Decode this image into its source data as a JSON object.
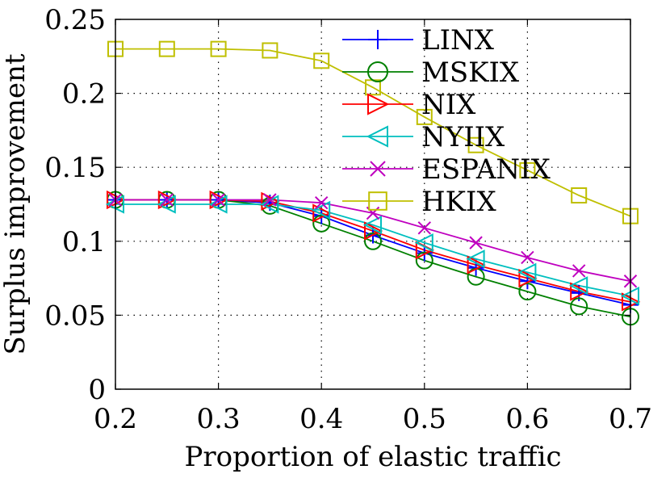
{
  "chart_data": {
    "type": "line",
    "title": "",
    "xlabel": "Proportion of elastic traffic",
    "ylabel": "Surplus improvement",
    "x": [
      0.2,
      0.25,
      0.3,
      0.35,
      0.4,
      0.45,
      0.5,
      0.55,
      0.6,
      0.65,
      0.7
    ],
    "xlim": [
      0.2,
      0.7
    ],
    "ylim": [
      0,
      0.25
    ],
    "xticks": [
      "0.2",
      "0.3",
      "0.4",
      "0.5",
      "0.6",
      "0.7"
    ],
    "yticks": [
      "0",
      "0.05",
      "0.1",
      "0.15",
      "0.2",
      "0.25"
    ],
    "grid": true,
    "legend_position": "top-right",
    "series": [
      {
        "name": "LINX",
        "color": "#0000ff",
        "marker": "plus",
        "values": [
          0.128,
          0.128,
          0.128,
          0.126,
          0.117,
          0.104,
          0.092,
          0.082,
          0.073,
          0.065,
          0.057
        ]
      },
      {
        "name": "MSKIX",
        "color": "#008000",
        "marker": "circle",
        "values": [
          0.128,
          0.128,
          0.128,
          0.124,
          0.112,
          0.1,
          0.087,
          0.076,
          0.066,
          0.056,
          0.049
        ]
      },
      {
        "name": "NIX",
        "color": "#ff0000",
        "marker": "triangle-right",
        "values": [
          0.128,
          0.128,
          0.128,
          0.127,
          0.119,
          0.107,
          0.094,
          0.084,
          0.075,
          0.066,
          0.059
        ]
      },
      {
        "name": "NYIIX",
        "color": "#00bfbf",
        "marker": "triangle-left",
        "values": [
          0.125,
          0.125,
          0.125,
          0.125,
          0.121,
          0.111,
          0.099,
          0.088,
          0.079,
          0.07,
          0.063
        ]
      },
      {
        "name": "ESPANIX",
        "color": "#bf00bf",
        "marker": "x",
        "values": [
          0.128,
          0.128,
          0.128,
          0.128,
          0.126,
          0.119,
          0.109,
          0.099,
          0.089,
          0.08,
          0.073
        ]
      },
      {
        "name": "HKIX",
        "color": "#bfbf00",
        "marker": "square",
        "values": [
          0.23,
          0.23,
          0.23,
          0.229,
          0.222,
          0.204,
          0.184,
          0.165,
          0.148,
          0.131,
          0.117
        ]
      }
    ]
  }
}
